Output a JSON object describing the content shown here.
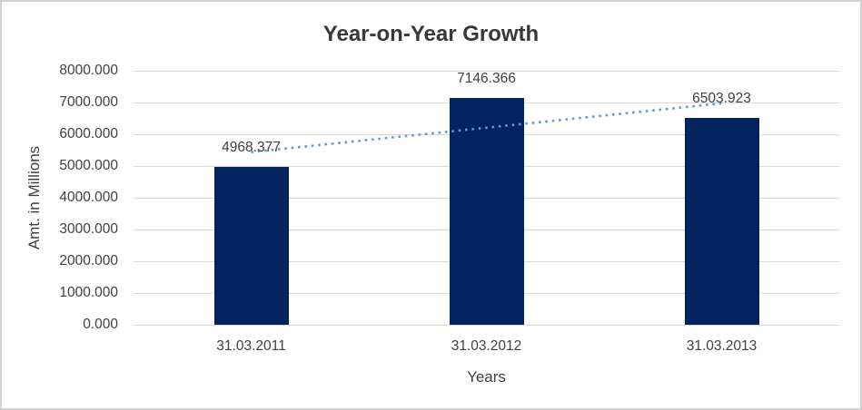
{
  "chart_data": {
    "type": "bar",
    "title": "Year-on-Year Growth",
    "xlabel": "Years",
    "ylabel": "Amt. in Millions",
    "categories": [
      "31.03.2011",
      "31.03.2012",
      "31.03.2013"
    ],
    "values": [
      4968.377,
      7146.366,
      6503.923
    ],
    "data_labels": [
      "4968.377",
      "7146.366",
      "6503.923"
    ],
    "ylim": [
      0,
      8000
    ],
    "ytick_labels": [
      "8000.000",
      "7000.000",
      "6000.000",
      "5000.000",
      "4000.000",
      "3000.000",
      "2000.000",
      "1000.000",
      "0.000"
    ],
    "grid": true,
    "legend_position": "none",
    "trendline": {
      "type": "linear",
      "style": "dotted"
    },
    "colors": {
      "bar": "#03235e",
      "trendline": "#5b9bd5",
      "gridline": "#d9d9d9",
      "text": "#404040",
      "title": "#383838",
      "border": "#d2d2d2"
    }
  }
}
